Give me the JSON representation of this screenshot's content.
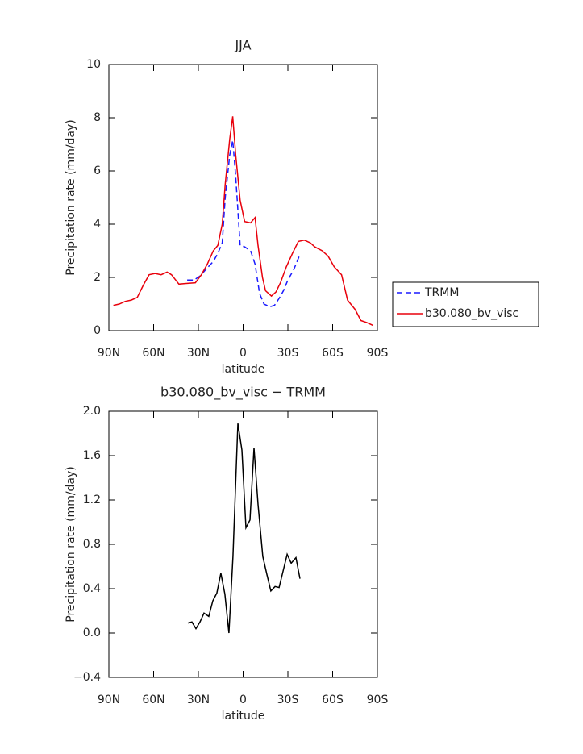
{
  "chart_data": [
    {
      "type": "line",
      "title": "JJA",
      "xlabel": "latitude",
      "ylabel": "Precipitation rate (mm/day)",
      "xlim": [
        90,
        -90
      ],
      "ylim": [
        0,
        10
      ],
      "xticks": [
        {
          "value": 90,
          "label": "90N"
        },
        {
          "value": 60,
          "label": "60N"
        },
        {
          "value": 30,
          "label": "30N"
        },
        0,
        {
          "value": -30,
          "label": "30S"
        },
        {
          "value": -60,
          "label": "60S"
        },
        {
          "value": -90,
          "label": "90S"
        }
      ],
      "yticks": [
        0,
        2,
        4,
        6,
        8,
        10
      ],
      "legend": "right",
      "series": [
        {
          "name": "TRMM",
          "color": "#1a1aff",
          "dash": "dashed",
          "x": [
            37.5,
            33,
            29,
            25,
            20,
            17,
            14,
            12,
            9,
            7,
            5,
            2,
            -1,
            -5,
            -8,
            -11,
            -14,
            -18,
            -21,
            -24,
            -27,
            -30,
            -34,
            -38
          ],
          "values": [
            1.9,
            1.9,
            2.05,
            2.3,
            2.6,
            2.9,
            3.3,
            5.0,
            6.6,
            7.15,
            5.8,
            3.2,
            3.15,
            3.0,
            2.5,
            1.4,
            1.0,
            0.9,
            0.95,
            1.2,
            1.5,
            1.9,
            2.3,
            2.85
          ]
        },
        {
          "name": "b30.080_bv_visc",
          "color": "#e8000b",
          "dash": "solid",
          "x": [
            87,
            83,
            79,
            75,
            71,
            67,
            63,
            59,
            55,
            51,
            48,
            43,
            39,
            32,
            28,
            24,
            20,
            17,
            14,
            12,
            9,
            7,
            5,
            2,
            -1,
            -5,
            -8,
            -10,
            -13,
            -15,
            -19,
            -22,
            -25,
            -29,
            -33,
            -37,
            -41,
            -45,
            -48,
            -53,
            -57,
            -61,
            -66,
            -70,
            -75,
            -79,
            -83,
            -87
          ],
          "values": [
            0.95,
            1.0,
            1.1,
            1.15,
            1.25,
            1.7,
            2.1,
            2.15,
            2.1,
            2.2,
            2.1,
            1.75,
            1.77,
            1.8,
            2.1,
            2.5,
            3.0,
            3.2,
            4.0,
            5.5,
            7.2,
            8.05,
            6.6,
            4.9,
            4.1,
            4.05,
            4.25,
            3.2,
            2.0,
            1.5,
            1.3,
            1.45,
            1.8,
            2.4,
            2.9,
            3.35,
            3.4,
            3.3,
            3.15,
            3.0,
            2.8,
            2.4,
            2.1,
            1.15,
            0.8,
            0.38,
            0.3,
            0.2
          ]
        }
      ]
    },
    {
      "type": "line",
      "title": "b30.080_bv_visc − TRMM",
      "xlabel": "latitude",
      "ylabel": "Precipitation rate (mm/day)",
      "xlim": [
        90,
        -90
      ],
      "ylim": [
        -0.4,
        2.0
      ],
      "xticks": [
        {
          "value": 90,
          "label": "90N"
        },
        {
          "value": 60,
          "label": "60N"
        },
        {
          "value": 30,
          "label": "30N"
        },
        0,
        {
          "value": -30,
          "label": "30S"
        },
        {
          "value": -60,
          "label": "60S"
        },
        {
          "value": -90,
          "label": "90S"
        }
      ],
      "yticks": [
        {
          "value": -0.4,
          "label": "−0.4"
        },
        {
          "value": 0,
          "label": "0.0"
        },
        0.4,
        0.8,
        1.2,
        1.6,
        {
          "value": 2.0,
          "label": "2.0"
        }
      ],
      "color": "#000000",
      "x": [
        37.0,
        34.3,
        31.6,
        28.9,
        26.2,
        23.0,
        20.3,
        17.6,
        14.9,
        12.2,
        9.5,
        6.8,
        3.5,
        0.8,
        -1.9,
        -4.6,
        -7.3,
        -10,
        -13.2,
        -15.9,
        -18.6,
        -21.4,
        -24.1,
        -26.8,
        -29.5,
        -32.2,
        -35.4,
        -38.1
      ],
      "values": [
        0.09,
        0.1,
        0.04,
        0.1,
        0.18,
        0.15,
        0.29,
        0.36,
        0.54,
        0.35,
        0.0,
        0.69,
        1.89,
        1.65,
        0.95,
        1.02,
        1.67,
        1.16,
        0.69,
        0.53,
        0.38,
        0.42,
        0.41,
        0.56,
        0.71,
        0.63,
        0.68,
        0.49
      ]
    }
  ]
}
